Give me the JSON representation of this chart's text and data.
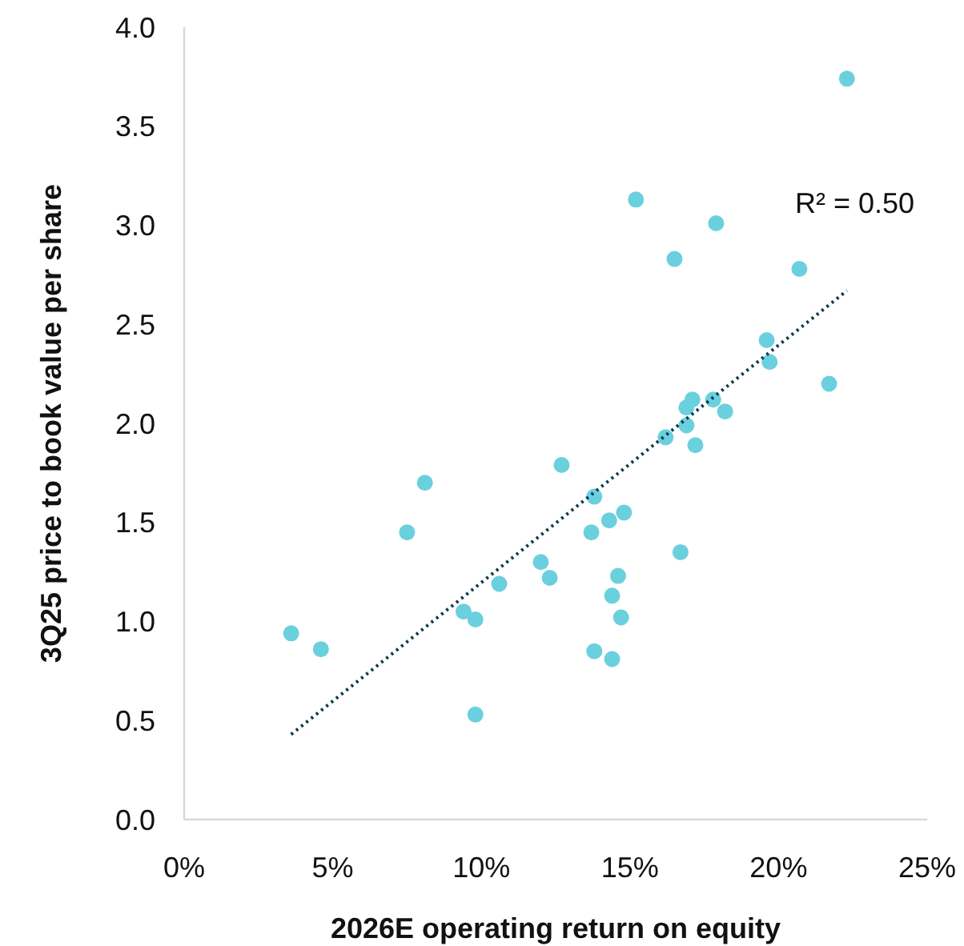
{
  "chart_data": {
    "type": "scatter",
    "xlabel": "2026E operating return on equity",
    "ylabel": "3Q25 price to book value per share",
    "xlim": [
      0,
      25
    ],
    "xticks": [
      {
        "value": 0,
        "label": "0%"
      },
      {
        "value": 5,
        "label": "5%"
      },
      {
        "value": 10,
        "label": "10%"
      },
      {
        "value": 15,
        "label": "15%"
      },
      {
        "value": 20,
        "label": "20%"
      },
      {
        "value": 25,
        "label": "25%"
      }
    ],
    "ylim": [
      0,
      4
    ],
    "yticks": [
      {
        "value": 0,
        "label": "0.0"
      },
      {
        "value": 0.5,
        "label": "0.5"
      },
      {
        "value": 1,
        "label": "1.0"
      },
      {
        "value": 1.5,
        "label": "1.5"
      },
      {
        "value": 2,
        "label": "2.0"
      },
      {
        "value": 2.5,
        "label": "2.5"
      },
      {
        "value": 3,
        "label": "3.0"
      },
      {
        "value": 3.5,
        "label": "3.5"
      },
      {
        "value": 4,
        "label": "4.0"
      }
    ],
    "grid": false,
    "marker": "circle",
    "annotations": [
      "R² = 0.50"
    ],
    "series": [
      {
        "color": "#6bd0de",
        "x": [
          3.6,
          4.6,
          7.5,
          8.1,
          9.4,
          9.8,
          9.8,
          10.6,
          12.0,
          12.3,
          12.7,
          15.2,
          17.9,
          16.5,
          20.7,
          22.3,
          19.6,
          19.7,
          21.7,
          17.1,
          16.9,
          17.8,
          18.2,
          16.9,
          16.2,
          17.2,
          13.8,
          14.8,
          14.3,
          13.7,
          16.7,
          14.6,
          14.4,
          14.7,
          13.8,
          14.4
        ],
        "values": [
          0.94,
          0.86,
          1.45,
          1.7,
          1.05,
          1.01,
          0.53,
          1.19,
          1.3,
          1.22,
          1.79,
          3.13,
          3.01,
          2.83,
          2.78,
          3.74,
          2.42,
          2.31,
          2.2,
          2.12,
          2.08,
          2.12,
          2.06,
          1.99,
          1.93,
          1.89,
          1.63,
          1.55,
          1.51,
          1.45,
          1.35,
          1.23,
          1.13,
          1.02,
          0.85,
          0.81
        ]
      },
      {
        "type": "line",
        "color": "#0d3b4f",
        "line_style": "dotted",
        "marker": "none",
        "x": [
          3.6,
          22.3
        ],
        "values": [
          0.43,
          2.67
        ]
      }
    ]
  }
}
